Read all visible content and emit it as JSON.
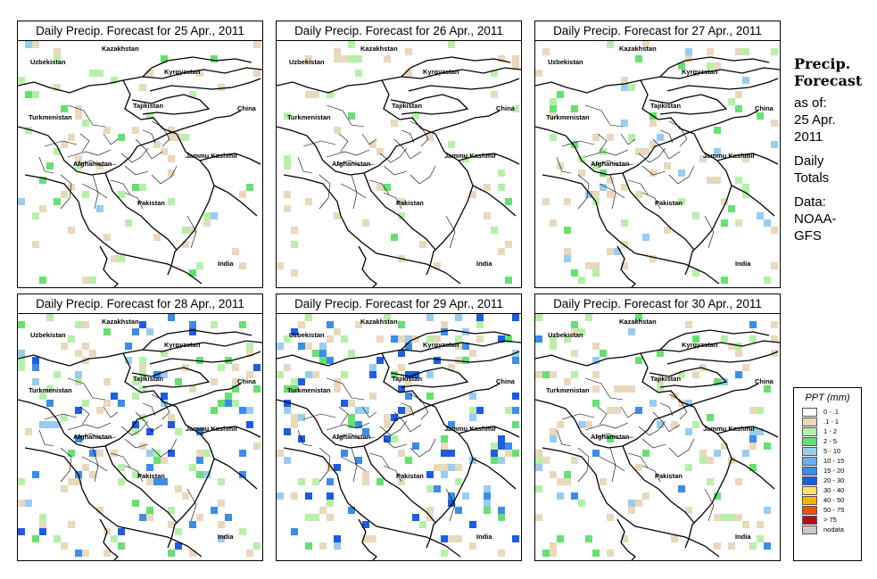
{
  "title_prefix": "Daily Precip. Forecast for",
  "panels": [
    {
      "title": "Daily Precip. Forecast for  25 Apr., 2011",
      "wetness": 0.25,
      "seed": 11
    },
    {
      "title": "Daily Precip. Forecast for  26 Apr., 2011",
      "wetness": 0.12,
      "seed": 23
    },
    {
      "title": "Daily Precip. Forecast for  27 Apr., 2011",
      "wetness": 0.35,
      "seed": 37
    },
    {
      "title": "Daily Precip. Forecast for  28 Apr., 2011",
      "wetness": 0.75,
      "seed": 41
    },
    {
      "title": "Daily Precip. Forecast for  29 Apr., 2011",
      "wetness": 0.9,
      "seed": 53
    },
    {
      "title": "Daily Precip. Forecast for  30 Apr., 2011",
      "wetness": 0.55,
      "seed": 67
    }
  ],
  "map_labels": {
    "kazakhstan": "Kazakhstan",
    "uzbekistan": "Uzbekistan",
    "kyrgyzstan": "Kyrgyzstan",
    "tajikistan": "Tajikistan",
    "turkmenistan": "Turkmenistan",
    "china": "China",
    "afghanistan": "Afghanistan",
    "jammu_kashmir": "Jammu Kashmir",
    "pakistan": "Pakistan",
    "india": "India"
  },
  "sidebar": {
    "heading_line1": "Precip.",
    "heading_line2": "Forecast",
    "as_of_label": "as of:",
    "as_of_date_1": "25 Apr.",
    "as_of_date_2": "2011",
    "totals_1": "Daily",
    "totals_2": "Totals",
    "data_1": "Data:",
    "data_2": "NOAA-",
    "data_3": "GFS"
  },
  "legend": {
    "title": "PPT (mm)",
    "items": [
      {
        "label": "0 - .1",
        "color": "#ffffff"
      },
      {
        "label": ".1 - 1",
        "color": "#e8d8bc"
      },
      {
        "label": "1 - 2",
        "color": "#b6f0a8"
      },
      {
        "label": "2 - 5",
        "color": "#66e070"
      },
      {
        "label": "5 - 10",
        "color": "#98ccf0"
      },
      {
        "label": "10 - 15",
        "color": "#6ab0f0"
      },
      {
        "label": "15 - 20",
        "color": "#3c8ce8"
      },
      {
        "label": "20 - 30",
        "color": "#1e5ce0"
      },
      {
        "label": "30 - 40",
        "color": "#ffe070"
      },
      {
        "label": "40 - 50",
        "color": "#ffb000"
      },
      {
        "label": "50 - 75",
        "color": "#f05000"
      },
      {
        "label": "> 75",
        "color": "#b01010"
      },
      {
        "label": "nodata",
        "color": "#c8c8c8"
      }
    ]
  }
}
